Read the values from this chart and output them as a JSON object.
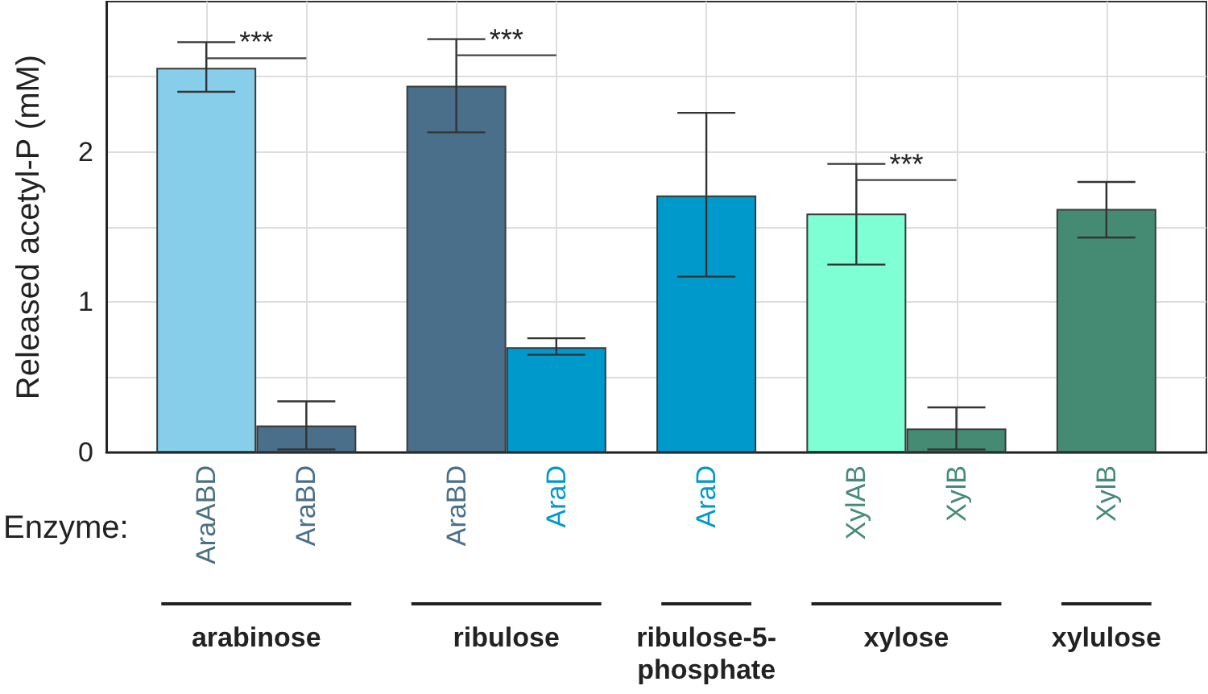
{
  "chart_data": {
    "type": "bar",
    "ylabel": "Released acetyl-P (mM)",
    "xlabel": "Enzyme:",
    "categories": [
      "AraABD",
      "AraBD",
      "AraBD",
      "AraD",
      "AraD",
      "XylAB",
      "XylB",
      "XylB"
    ],
    "values": [
      2.56,
      0.18,
      2.44,
      0.7,
      1.71,
      1.59,
      0.16,
      1.62
    ],
    "colors": [
      "#87ceeb",
      "#4a6f8a",
      "#4a6f8a",
      "#0099cc",
      "#0099cc",
      "#7fffd4",
      "#458b74",
      "#458b74"
    ],
    "errors": [
      [
        2.4,
        2.73
      ],
      [
        0.02,
        0.34
      ],
      [
        2.13,
        2.75
      ],
      [
        0.65,
        0.76
      ],
      [
        1.17,
        2.26
      ],
      [
        1.25,
        1.92
      ],
      [
        0.02,
        0.3
      ],
      [
        1.43,
        1.8
      ]
    ],
    "ylim": [
      0,
      3
    ],
    "yticks": [
      0,
      {
        "value": 0.5,
        "label": null
      },
      1,
      {
        "value": 1.5,
        "label": null
      },
      2,
      {
        "value": 2.5,
        "label": null
      }
    ],
    "grid": true,
    "annotations": [
      "***",
      "***",
      "***",
      "arabinose",
      "ribulose",
      "ribulose-5-\nphosphate",
      "xylose",
      "xylulose"
    ]
  }
}
